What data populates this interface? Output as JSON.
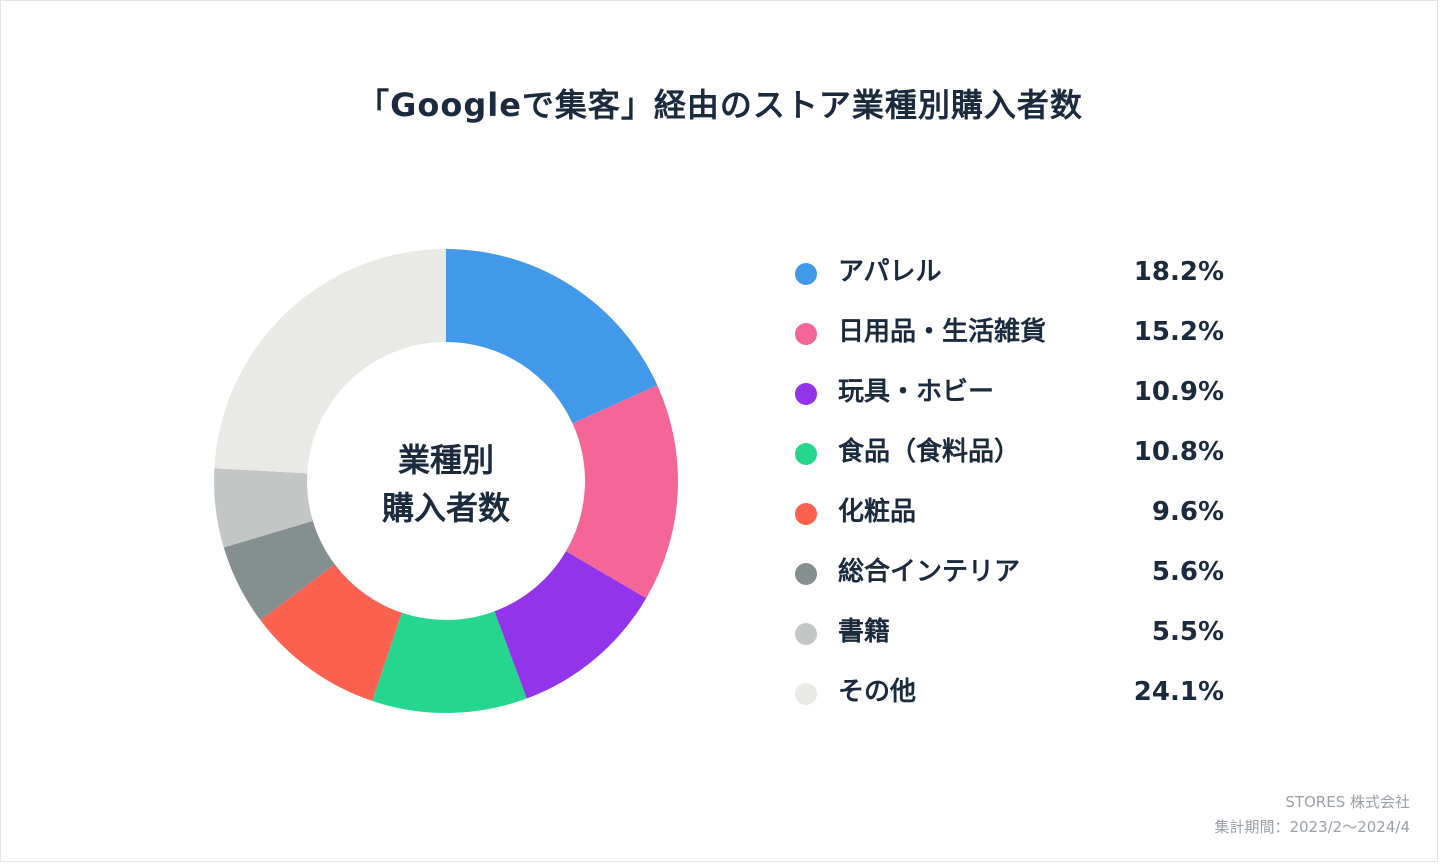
{
  "chart_data": {
    "type": "pie",
    "title": "「Googleで集客」経由のストア業種別購入者数",
    "center_label": [
      "業種別",
      "購入者数"
    ],
    "unit": "%",
    "legend_position": "right",
    "slices": [
      {
        "label": "アパレル",
        "value": 18.2,
        "display": "18.2%",
        "color": "#4299ea"
      },
      {
        "label": "日用品・生活雑貨",
        "value": 15.2,
        "display": "15.2%",
        "color": "#f46698"
      },
      {
        "label": "玩具・ホビー",
        "value": 10.9,
        "display": "10.9%",
        "color": "#9134ea"
      },
      {
        "label": "食品（食料品）",
        "value": 10.8,
        "display": "10.8%",
        "color": "#27d68e"
      },
      {
        "label": "化粧品",
        "value": 9.6,
        "display": "9.6%",
        "color": "#fc604f"
      },
      {
        "label": "総合インテリア",
        "value": 5.6,
        "display": "5.6%",
        "color": "#868f8f"
      },
      {
        "label": "書籍",
        "value": 5.5,
        "display": "5.5%",
        "color": "#c2c6c4"
      },
      {
        "label": "その他",
        "value": 24.1,
        "display": "24.1%",
        "color": "#e9e9e5"
      }
    ]
  },
  "footer": {
    "company": "STORES 株式会社",
    "period": "集計期間：2023/2～2024/4"
  }
}
